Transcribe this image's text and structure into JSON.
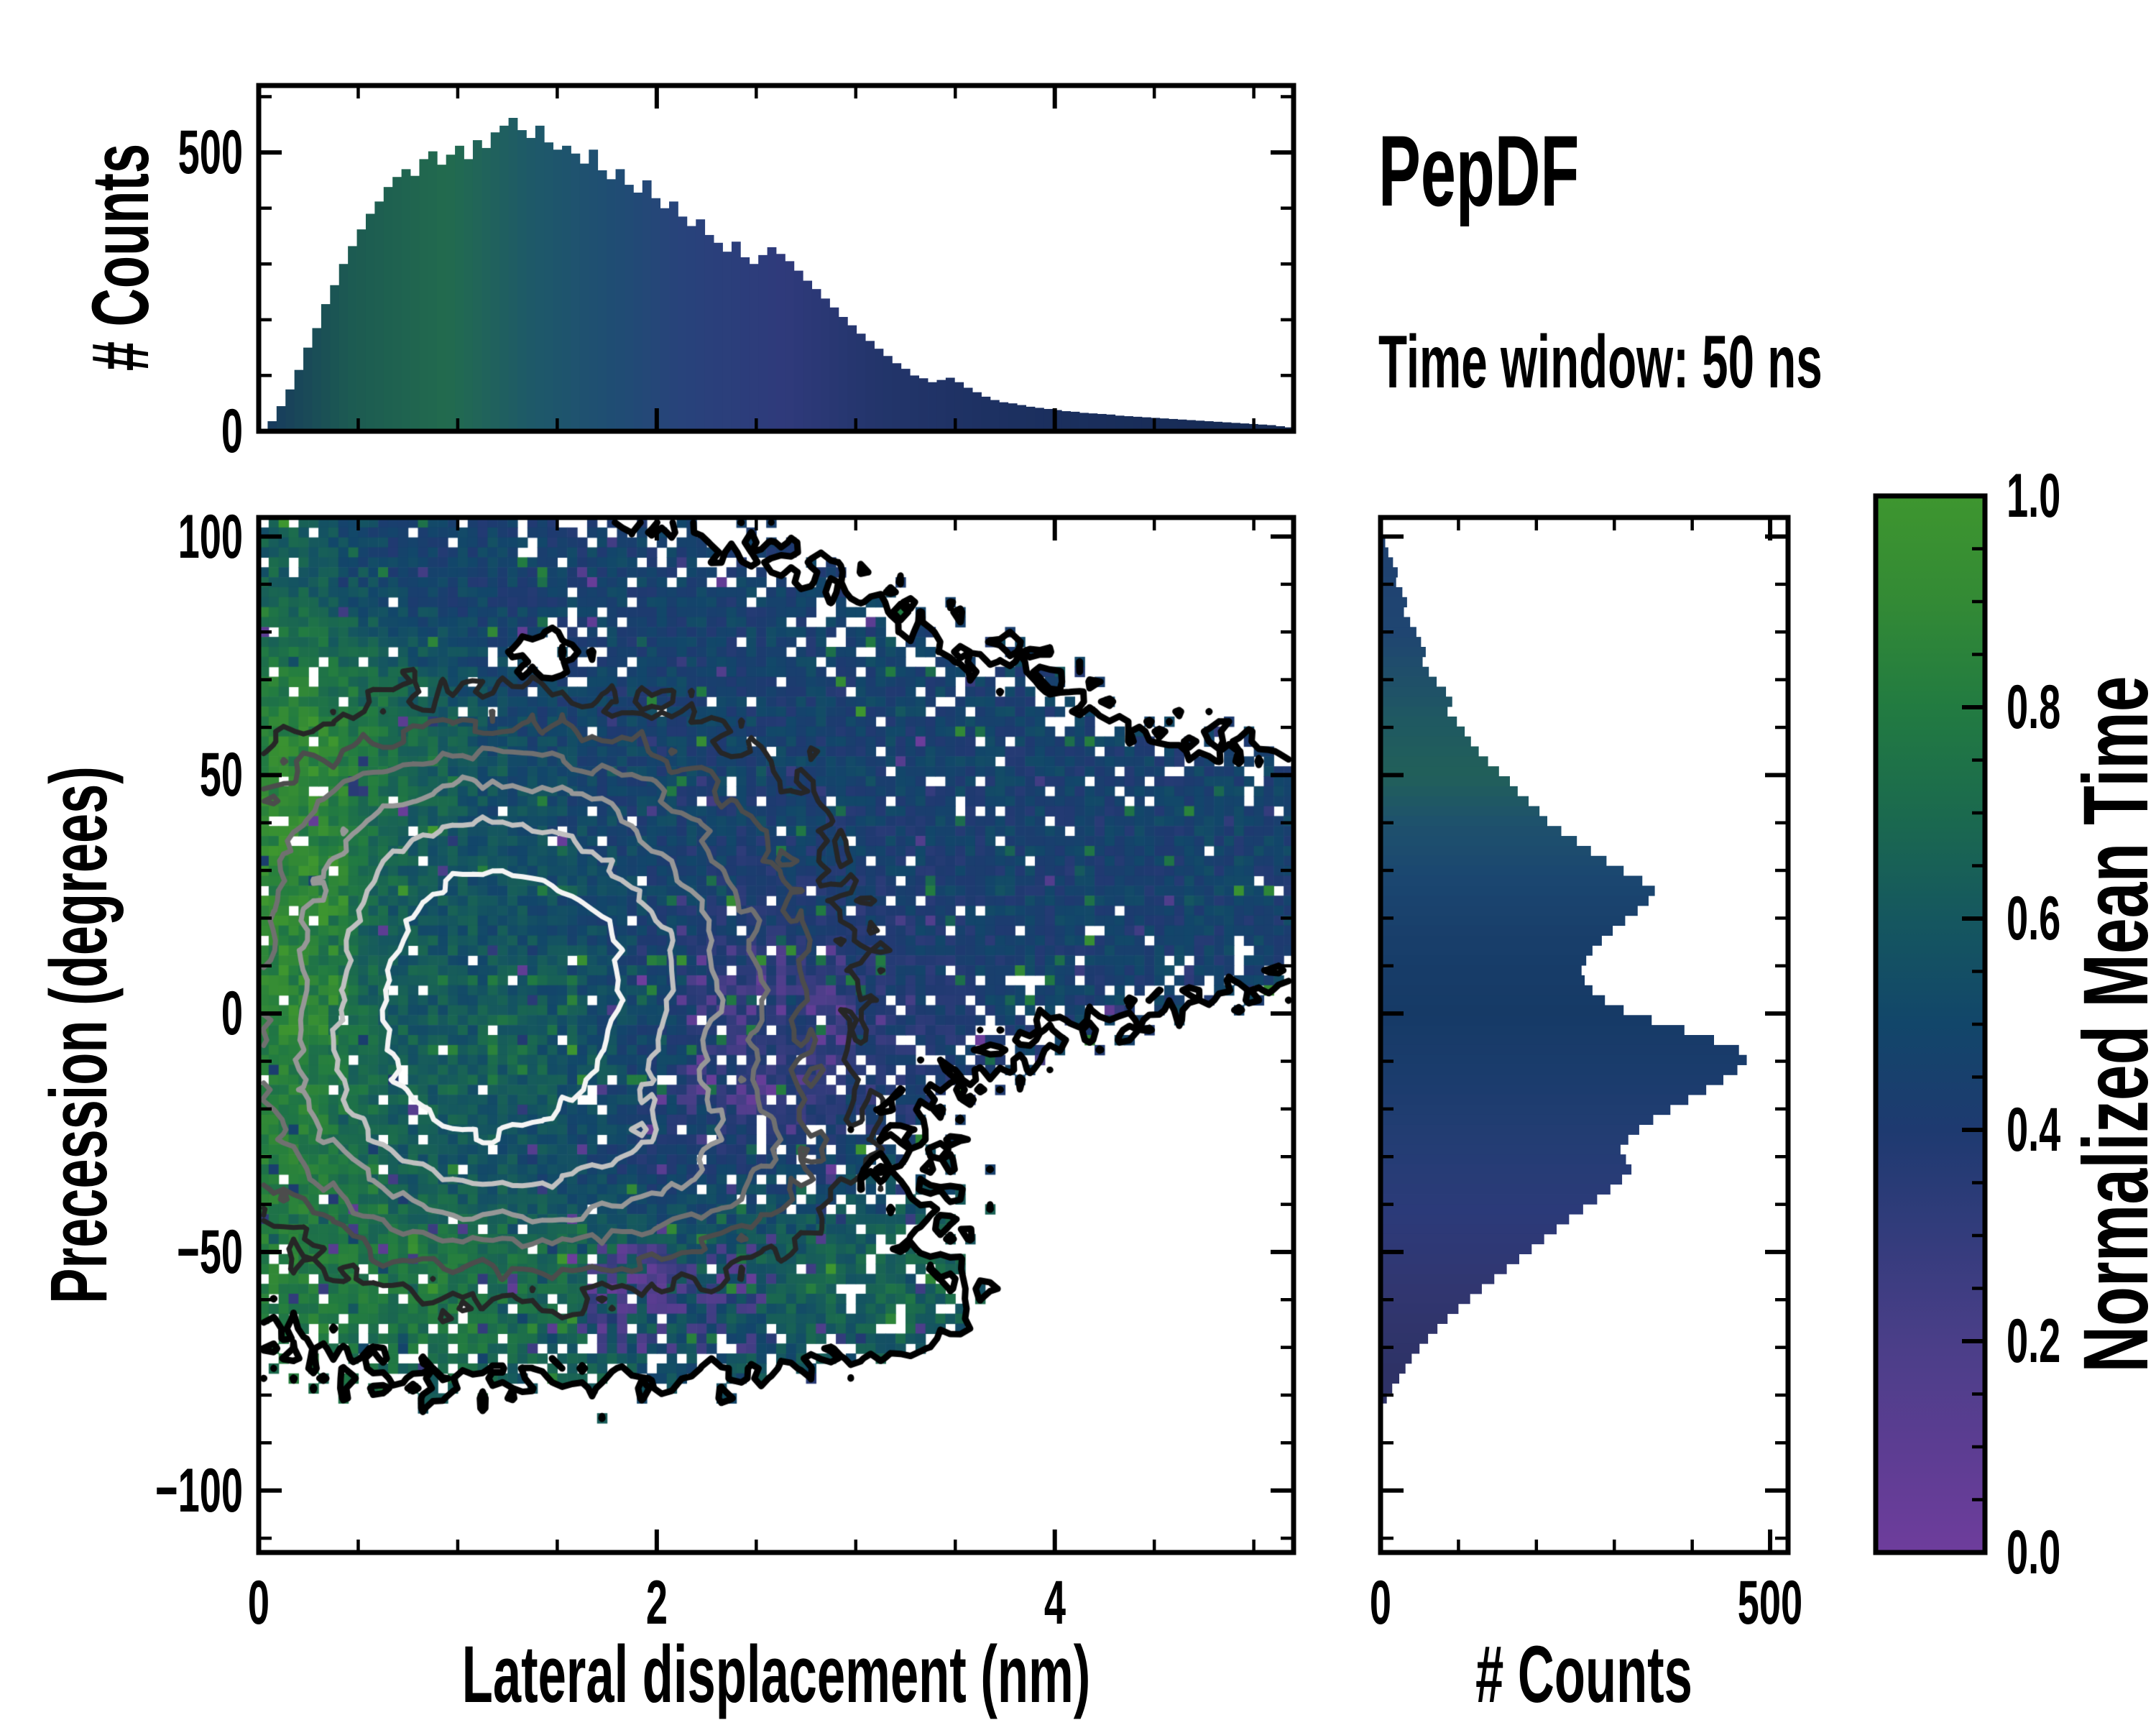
{
  "title": "PepDF",
  "subtitle": "Time window: 50 ns",
  "background": "#ffffff",
  "axes": {
    "main": {
      "xlabel": "Lateral displacement (nm)",
      "ylabel": "Precession (degrees)",
      "xlim": [
        0,
        5.2
      ],
      "ylim": [
        -113,
        104
      ],
      "x_tick_values": [
        0,
        2,
        4
      ],
      "x_tick_labels": [
        "0",
        "2",
        "4"
      ],
      "x_minor_step": 0.5,
      "y_tick_values": [
        100,
        50,
        0,
        -50,
        -100
      ],
      "y_tick_labels": [
        "100",
        "50",
        "0",
        "−50",
        "−100"
      ],
      "y_minor_step": 10
    },
    "top_hist": {
      "ylabel": "# Counts",
      "ylim": [
        0,
        620
      ],
      "y_tick_values": [
        0,
        500
      ],
      "y_tick_labels": [
        "0",
        "500"
      ],
      "y_minor_values": [
        100,
        200,
        300,
        400,
        600
      ]
    },
    "right_hist": {
      "xlabel": "# Counts",
      "xlim": [
        0,
        523
      ],
      "x_tick_values": [
        0,
        500
      ],
      "x_tick_labels": [
        "0",
        "500"
      ],
      "x_minor_values": [
        100,
        200,
        300,
        400
      ]
    }
  },
  "colorbar": {
    "label": "Normalized Mean Time",
    "tick_values": [
      0.0,
      0.2,
      0.4,
      0.6,
      0.8,
      1.0
    ],
    "tick_labels": [
      "0.0",
      "0.2",
      "0.4",
      "0.6",
      "0.8",
      "1.0"
    ],
    "minor_step": 0.05,
    "stops": [
      [
        0.0,
        "#6e3d9c"
      ],
      [
        0.1,
        "#5c3d92"
      ],
      [
        0.2,
        "#4a3e88"
      ],
      [
        0.3,
        "#333c7c"
      ],
      [
        0.4,
        "#1e3a70"
      ],
      [
        0.5,
        "#12466a"
      ],
      [
        0.6,
        "#15575f"
      ],
      [
        0.7,
        "#1b6a4e"
      ],
      [
        0.8,
        "#227b41"
      ],
      [
        0.9,
        "#338a35"
      ],
      [
        1.0,
        "#3e962f"
      ]
    ]
  },
  "chart_data": [
    {
      "type": "bar",
      "name": "lateral-displacement-histogram",
      "orientation": "vertical",
      "x_range": [
        0,
        5.2
      ],
      "n_bins": 116,
      "ylim": [
        0,
        620
      ],
      "values": [
        4,
        18,
        45,
        75,
        110,
        150,
        185,
        228,
        262,
        300,
        332,
        362,
        390,
        412,
        438,
        456,
        470,
        458,
        488,
        502,
        478,
        496,
        512,
        488,
        522,
        508,
        536,
        548,
        562,
        540,
        526,
        548,
        518,
        505,
        512,
        498,
        480,
        505,
        468,
        452,
        470,
        442,
        428,
        450,
        418,
        400,
        412,
        385,
        368,
        380,
        352,
        338,
        322,
        340,
        312,
        300,
        316,
        330,
        318,
        305,
        288,
        270,
        255,
        238,
        222,
        205,
        190,
        175,
        162,
        148,
        135,
        122,
        112,
        100,
        95,
        88,
        92,
        96,
        88,
        78,
        70,
        62,
        56,
        52,
        50,
        47,
        44,
        42,
        40,
        38,
        36,
        35,
        33,
        32,
        31,
        30,
        28,
        27,
        26,
        25,
        24,
        23,
        22,
        21,
        20,
        19,
        18,
        17,
        16,
        15,
        14,
        13,
        12,
        11,
        9,
        7
      ],
      "bar_color_stops": [
        [
          0.0,
          "#17375f"
        ],
        [
          0.45,
          "#1c5a52"
        ],
        [
          0.95,
          "#226b4e"
        ],
        [
          1.35,
          "#1e5a68"
        ],
        [
          1.75,
          "#1f4e73"
        ],
        [
          2.15,
          "#28427b"
        ],
        [
          2.65,
          "#2f3a7b"
        ],
        [
          3.1,
          "#23356b"
        ],
        [
          3.8,
          "#1c3060"
        ],
        [
          5.2,
          "#152a52"
        ]
      ]
    },
    {
      "type": "heatmap",
      "name": "precession-vs-lateral-displacement",
      "xlim": [
        0,
        5.2
      ],
      "ylim": [
        -113,
        104
      ],
      "nx": 104,
      "ny": 104,
      "value_meaning": "normalized mean time, 0-1, mapped through colormap stops",
      "seed_occupancy": 1234567,
      "seed_value": 89101,
      "seed_density": 424242,
      "occupancy_components": [
        [
          1.0,
          15,
          0.95,
          48,
          1.0
        ],
        [
          0.95,
          78,
          0.95,
          17,
          0.9
        ],
        [
          0.4,
          95,
          0.5,
          10,
          0.35
        ],
        [
          2.1,
          58,
          1.0,
          18,
          0.8
        ],
        [
          2.55,
          20,
          0.85,
          30,
          0.8
        ],
        [
          1.7,
          -48,
          0.95,
          16,
          0.85
        ],
        [
          2.5,
          -58,
          0.45,
          10,
          0.5
        ],
        [
          3.6,
          32,
          0.8,
          19,
          0.8
        ],
        [
          4.5,
          28,
          0.8,
          14,
          0.65
        ],
        [
          5.05,
          32,
          0.45,
          13,
          0.55
        ],
        [
          3.28,
          -63,
          0.22,
          5,
          0.5
        ],
        [
          0.35,
          -15,
          0.4,
          25,
          0.6
        ]
      ],
      "occupancy_holes": [
        [
          1.45,
          73,
          0.33,
          10,
          1.5
        ],
        [
          0.9,
          66,
          0.25,
          7,
          0.4
        ],
        [
          2.55,
          57,
          0.22,
          6,
          0.35
        ],
        [
          0.35,
          76,
          0.15,
          6,
          0.35
        ]
      ],
      "occupancy_level": 0.3,
      "occupancy_noise": 0.17,
      "hole_prob_steps": [
        [
          0.55,
          0.22
        ],
        [
          0.9,
          0.1
        ],
        [
          99,
          0.03
        ]
      ],
      "value_base": [
        0.47,
        0.45
      ],
      "value_noise": 0.09,
      "value_components": [
        [
          0.1,
          18,
          0.22,
          48,
          0.95,
          4.5
        ],
        [
          0.38,
          56,
          0.38,
          16,
          0.88,
          2.5
        ],
        [
          0.3,
          70,
          0.35,
          9,
          0.82,
          1.6
        ],
        [
          0.18,
          -18,
          0.3,
          18,
          0.8,
          2.0
        ],
        [
          1.5,
          88,
          2.2,
          15,
          0.45,
          2.6
        ],
        [
          4.0,
          30,
          1.6,
          28,
          0.45,
          2.6
        ],
        [
          2.6,
          60,
          0.9,
          16,
          0.46,
          1.6
        ],
        [
          1.05,
          2,
          0.85,
          30,
          0.63,
          2.2
        ],
        [
          1.35,
          -8,
          0.42,
          12,
          0.72,
          1.3
        ],
        [
          2.55,
          0,
          0.55,
          22,
          0.2,
          1.8
        ],
        [
          2.3,
          -40,
          0.6,
          15,
          0.22,
          1.3
        ],
        [
          1.35,
          -58,
          0.85,
          11,
          0.85,
          3.0
        ],
        [
          2.8,
          -48,
          0.55,
          13,
          0.85,
          1.6
        ],
        [
          2.05,
          -63,
          0.45,
          8,
          0.18,
          1.2
        ]
      ],
      "value_patches": [
        [
          1.65,
          2.5,
          -72,
          -48,
          0.55,
          0.1,
          0.28
        ],
        [
          2.1,
          3.0,
          -22,
          14,
          0.33,
          0.08,
          0.26
        ],
        [
          0.0,
          0.45,
          -5,
          62,
          0.5,
          0.82,
          0.98
        ],
        [
          0.9,
          1.6,
          -18,
          8,
          0.25,
          0.6,
          0.8
        ]
      ],
      "speckle_prob_default": 0.05,
      "speckle_prob_bottom": 0.1,
      "density_components": [
        [
          1.15,
          -8,
          0.55,
          20,
          1.0
        ],
        [
          0.95,
          22,
          0.55,
          16,
          0.9
        ],
        [
          1.45,
          8,
          0.45,
          16,
          0.85
        ],
        [
          1.5,
          -30,
          0.7,
          14,
          0.6
        ],
        [
          0.7,
          -12,
          0.5,
          18,
          0.6
        ],
        [
          1.2,
          42,
          0.8,
          13,
          0.45
        ],
        [
          2.0,
          12,
          0.55,
          18,
          0.45
        ],
        [
          2.2,
          -30,
          0.5,
          12,
          0.3
        ],
        [
          1.3,
          5,
          1.15,
          45,
          0.5
        ]
      ],
      "density_scale": 2.6,
      "density_noise": 0.055,
      "contour_levels": [
        0.1,
        0.17,
        0.26,
        0.38,
        0.55,
        0.78
      ],
      "contour_colors": [
        "#262626",
        "#4c4c4c",
        "#707070",
        "#979797",
        "#c0c0c0",
        "#f4f4f4"
      ],
      "boundary_color": "#000000",
      "boundary_width": 9,
      "contour_width": 7
    },
    {
      "type": "bar",
      "name": "precession-histogram",
      "orientation": "horizontal",
      "y_range": [
        104,
        -113
      ],
      "n_bins": 104,
      "xlim": [
        0,
        523
      ],
      "values": [
        0,
        0,
        6,
        10,
        16,
        22,
        20,
        28,
        34,
        30,
        38,
        46,
        52,
        58,
        54,
        62,
        72,
        84,
        92,
        86,
        98,
        108,
        116,
        126,
        138,
        152,
        166,
        176,
        190,
        204,
        214,
        232,
        252,
        270,
        290,
        312,
        336,
        352,
        344,
        330,
        314,
        298,
        284,
        272,
        264,
        258,
        262,
        272,
        288,
        312,
        348,
        390,
        428,
        460,
        470,
        458,
        440,
        418,
        395,
        372,
        350,
        332,
        318,
        308,
        315,
        322,
        310,
        295,
        278,
        260,
        242,
        226,
        210,
        194,
        178,
        162,
        146,
        130,
        115,
        100,
        86,
        73,
        61,
        50,
        40,
        32,
        24,
        15,
        8,
        3,
        0,
        0,
        0,
        0,
        0,
        0,
        0,
        0,
        0,
        0,
        0,
        0,
        0,
        0
      ],
      "bar_color_stops": [
        [
          -113,
          "#2e3266"
        ],
        [
          -75,
          "#2e3266"
        ],
        [
          -58,
          "#313670"
        ],
        [
          -42,
          "#2c3a79"
        ],
        [
          -28,
          "#243d74"
        ],
        [
          -12,
          "#1a3c6c"
        ],
        [
          0,
          "#163a66"
        ],
        [
          15,
          "#183e6a"
        ],
        [
          28,
          "#1b4670"
        ],
        [
          40,
          "#1e516d"
        ],
        [
          50,
          "#216059"
        ],
        [
          62,
          "#1f5862"
        ],
        [
          80,
          "#1f4571"
        ],
        [
          104,
          "#1f4070"
        ]
      ]
    }
  ]
}
